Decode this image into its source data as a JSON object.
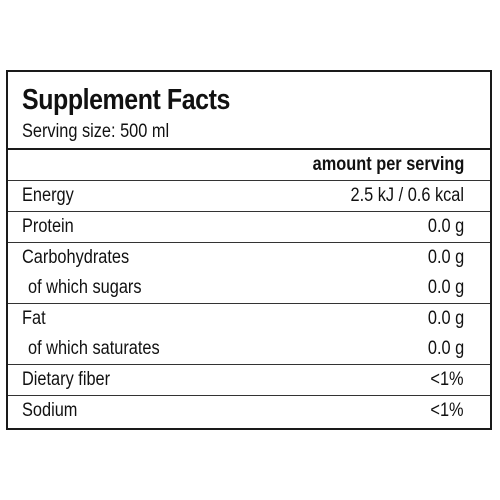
{
  "title": "Supplement Facts",
  "serving_size": "Serving size: 500 ml",
  "column_header": "amount per serving",
  "nutrients": [
    {
      "label": "Energy",
      "value": "2.5 kJ / 0.6 kcal"
    },
    {
      "label": "Protein",
      "value": "0.0 g"
    },
    {
      "label": "Carbohydrates",
      "value": "0.0 g"
    },
    {
      "label": "of which sugars",
      "value": "0.0 g"
    },
    {
      "label": "Fat",
      "value": "0.0 g"
    },
    {
      "label": "of which saturates",
      "value": "0.0 g"
    },
    {
      "label": "Dietary fiber",
      "value": "<1%"
    },
    {
      "label": "Sodium",
      "value": "<1%"
    }
  ]
}
